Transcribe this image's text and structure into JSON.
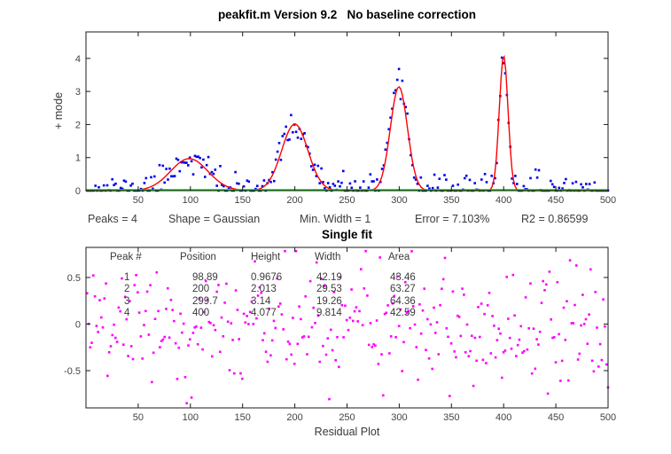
{
  "window": {
    "background": "#ffffff"
  },
  "chart_data": [
    {
      "type": "scatter",
      "title": "peakfit.m Version 9.2   No baseline correction",
      "ylabel": "+ mode",
      "xlabel": "",
      "xlim": [
        0,
        500
      ],
      "ylim": [
        0,
        4.8
      ],
      "xticks": [
        50,
        100,
        150,
        200,
        250,
        300,
        350,
        400,
        450,
        500
      ],
      "yticks": [
        0,
        1,
        2,
        3,
        4
      ],
      "grid": false,
      "stats": [
        "Peaks = 4",
        "Shape = Gaussian",
        "Min. Width = 1",
        "Error = 7.103%",
        "R2 = 0.86599"
      ],
      "series": [
        {
          "name": "raw-data-points",
          "type": "scatter",
          "marker": "dot",
          "color": "#0000ee",
          "n": 310,
          "noise_sigma": 0.22,
          "seed": 11
        },
        {
          "name": "gaussian-fit-curve",
          "type": "line",
          "color": "#ff0000",
          "peaks": [
            {
              "peak": 1,
              "position": 98.89,
              "height": 0.9676,
              "width": 42.19,
              "area": 43.46
            },
            {
              "peak": 2,
              "position": 200,
              "height": 2.013,
              "width": 29.53,
              "area": 63.27
            },
            {
              "peak": 3,
              "position": 299.7,
              "height": 3.14,
              "width": 19.26,
              "area": 64.36
            },
            {
              "peak": 4,
              "position": 400,
              "height": 4.077,
              "width": 9.814,
              "area": 42.59
            }
          ]
        },
        {
          "name": "baseline",
          "type": "line",
          "color": "#00cc00",
          "y": 0
        }
      ]
    },
    {
      "type": "scatter",
      "title": "Single fit",
      "xlabel": "Residual Plot",
      "xlim": [
        0,
        500
      ],
      "ylim": [
        -0.9,
        0.823
      ],
      "xticks": [
        50,
        100,
        150,
        200,
        250,
        300,
        350,
        400,
        450,
        500
      ],
      "yticks": [
        -0.5,
        0,
        0.5
      ],
      "grid": false,
      "series": [
        {
          "name": "residual-points",
          "type": "scatter",
          "marker": "dot",
          "color": "#ff00ff",
          "n": 330,
          "noise_sigma": 0.32,
          "seed": 29
        }
      ],
      "table": {
        "headers": [
          "Peak #",
          "Position",
          "Height",
          "Width",
          "Area"
        ],
        "rows": [
          [
            "1",
            "98.89",
            "0.9676",
            "42.19",
            "43.46"
          ],
          [
            "2",
            "200",
            "2.013",
            "29.53",
            "63.27"
          ],
          [
            "3",
            "299.7",
            "3.14",
            "19.26",
            "64.36"
          ],
          [
            "4",
            "400",
            "4.077",
            "9.814",
            "42.59"
          ]
        ]
      }
    }
  ],
  "style": {
    "axis_color": "#1a1a1a",
    "tick_label_color": "#434343",
    "tick_length": 5
  }
}
